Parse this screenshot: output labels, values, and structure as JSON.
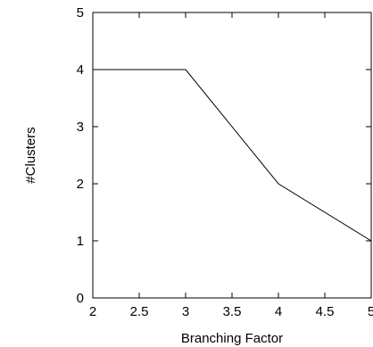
{
  "chart_data": {
    "type": "line",
    "title": "",
    "xlabel": "Branching Factor",
    "ylabel": "#Clusters",
    "xlim": [
      2,
      5
    ],
    "ylim": [
      0,
      5
    ],
    "xticks": [
      2,
      2.5,
      3,
      3.5,
      4,
      4.5,
      5
    ],
    "xtick_labels": [
      "2",
      "2.5",
      "3",
      "3.5",
      "4",
      "4.5",
      "5"
    ],
    "yticks": [
      0,
      1,
      2,
      3,
      4,
      5
    ],
    "ytick_labels": [
      "0",
      "1",
      "2",
      "3",
      "4",
      "5"
    ],
    "grid": false,
    "legend": "none",
    "line_color": "#000000",
    "series": [
      {
        "x": [
          2,
          3,
          4,
          5
        ],
        "y": [
          4,
          4,
          2,
          1
        ]
      }
    ]
  }
}
